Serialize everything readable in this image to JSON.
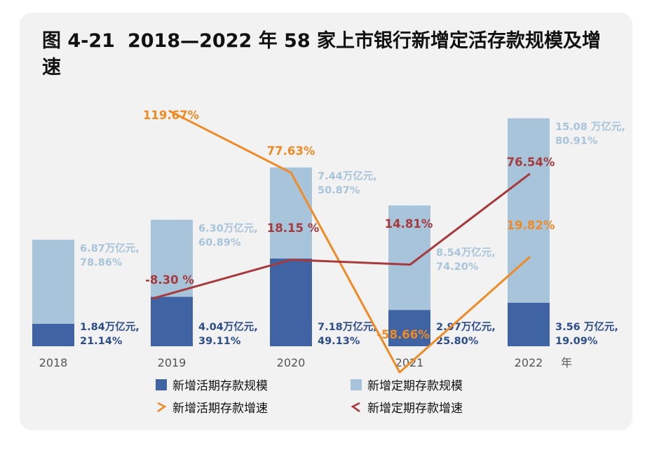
{
  "figure": {
    "prefix": "图 4-21",
    "title": "2018—2022 年 58 家上市银行新增定活存款规模及增速"
  },
  "colors": {
    "demand_bar": "#3f63a3",
    "time_bar": "#a8c4da",
    "demand_line": "#f08a24",
    "time_line": "#a63a3c",
    "demand_label": "#2c4d8c",
    "time_label": "#a8c4da"
  },
  "chart_data": {
    "type": "bar",
    "stacked": true,
    "categories": [
      "2018",
      "2019",
      "2020",
      "2021",
      "2022"
    ],
    "x_unit": "年",
    "series": [
      {
        "name": "新增活期存款规模",
        "values": [
          1.84,
          4.04,
          7.18,
          2.97,
          3.56
        ],
        "value_labels": [
          "1.84万亿元,",
          "4.04万亿元,",
          "7.18万亿元,",
          "2.97万亿元,",
          "3.56 万亿元,"
        ],
        "share_labels": [
          "21.14%",
          "39.11%",
          "49.13%",
          "25.80%",
          "19.09%"
        ]
      },
      {
        "name": "新增定期存款规模",
        "values": [
          6.87,
          6.3,
          7.44,
          8.54,
          15.08
        ],
        "value_labels": [
          "6.87万亿元,",
          "6.30万亿元,",
          "7.44万亿元,",
          "8.54万亿元,",
          "15.08 万亿元,"
        ],
        "share_labels": [
          "78.86%",
          "60.89%",
          "50.87%",
          "74.20%",
          "80.91%"
        ]
      }
    ],
    "lines": [
      {
        "name": "新增活期存款增速",
        "x": [
          "2019",
          "2020",
          "2021",
          "2022"
        ],
        "values": [
          119.67,
          77.63,
          -58.66,
          19.82
        ],
        "labels": [
          "119.67%",
          "77.63%",
          "-58.66%",
          "19.82%"
        ]
      },
      {
        "name": "新增定期存款增速",
        "x": [
          "2019",
          "2020",
          "2021",
          "2022"
        ],
        "values": [
          -8.3,
          18.15,
          14.81,
          76.54
        ],
        "labels": [
          "-8.30 %",
          "18.15 %",
          "14.81%",
          "76.54%"
        ]
      }
    ],
    "legend_position": "bottom",
    "grid": false
  }
}
